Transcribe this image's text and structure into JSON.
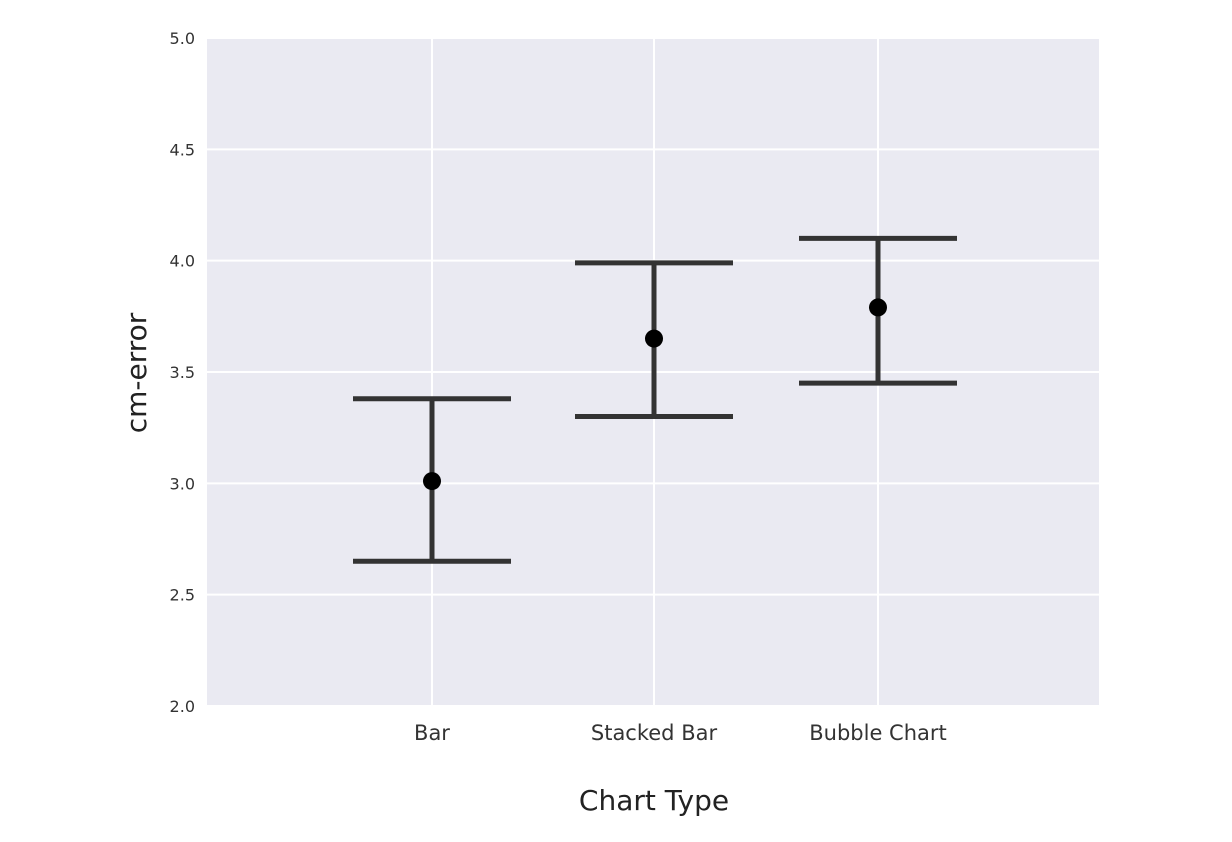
{
  "chart_data": {
    "type": "scatter",
    "title": "",
    "xlabel": "Chart Type",
    "ylabel": "cm-error",
    "categories": [
      "Bar",
      "Stacked Bar",
      "Bubble Chart"
    ],
    "series": [
      {
        "values": [
          3.01,
          3.65,
          3.79
        ],
        "error_low": [
          2.65,
          3.3,
          3.45
        ],
        "error_high": [
          3.38,
          3.99,
          4.1
        ]
      }
    ],
    "ylim": [
      2.0,
      5.0
    ],
    "yticks": [
      "2.0",
      "2.5",
      "3.0",
      "3.5",
      "4.0",
      "4.5",
      "5.0"
    ],
    "grid": true,
    "legend": "none",
    "colors": {
      "plot_background": "#EAEAF2",
      "grid": "#FFFFFF",
      "marker": "#000000",
      "errorbar": "#333333"
    }
  }
}
